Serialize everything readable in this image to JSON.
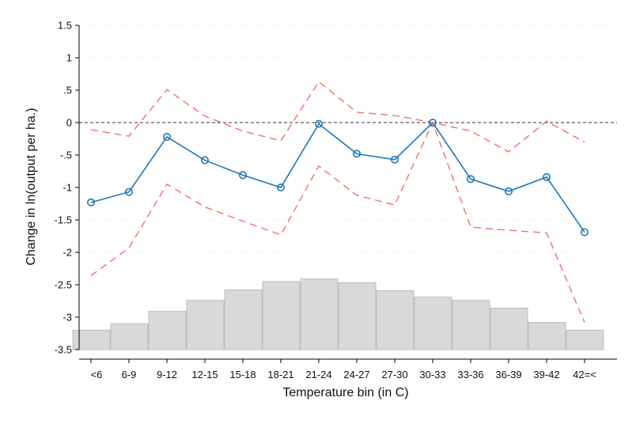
{
  "chart_data": {
    "type": "line",
    "xlabel": "Temperature bin (in C)",
    "ylabel": "Change in ln(output per ha.)",
    "ylim": [
      -3.5,
      1.5
    ],
    "yticks": [
      "1.5",
      "1",
      ".5",
      "0",
      "-.5",
      "-1",
      "-1.5",
      "-2",
      "-2.5",
      "-3",
      "-3.5"
    ],
    "ytick_values": [
      1.5,
      1,
      0.5,
      0,
      -0.5,
      -1,
      -1.5,
      -2,
      -2.5,
      -3,
      -3.5
    ],
    "categories": [
      "<6",
      "6-9",
      "9-12",
      "12-15",
      "15-18",
      "18-21",
      "21-24",
      "24-27",
      "27-30",
      "30-33",
      "33-36",
      "36-39",
      "39-42",
      "42=<"
    ],
    "grid": true,
    "reference_line": 0,
    "series": [
      {
        "role": "estimate",
        "style": "solid-with-circles",
        "color": "#1f77b4",
        "values": [
          -1.23,
          -1.07,
          -0.22,
          -0.58,
          -0.81,
          -1.0,
          -0.02,
          -0.48,
          -0.57,
          0.0,
          -0.87,
          -1.06,
          -0.84,
          -1.69
        ]
      },
      {
        "role": "upper-ci",
        "style": "dashed",
        "color": "#f07167",
        "values": [
          -0.11,
          -0.21,
          0.51,
          0.1,
          -0.13,
          -0.28,
          0.63,
          0.16,
          0.11,
          0.0,
          -0.13,
          -0.45,
          0.02,
          -0.3
        ]
      },
      {
        "role": "lower-ci",
        "style": "dashed",
        "color": "#f07167",
        "values": [
          -2.36,
          -1.93,
          -0.95,
          -1.3,
          -1.52,
          -1.73,
          -0.67,
          -1.12,
          -1.27,
          0.0,
          -1.61,
          -1.66,
          -1.7,
          -3.08
        ]
      }
    ],
    "histogram": {
      "color": "#d9d9d9",
      "values": [
        -3.2,
        -3.1,
        -2.91,
        -2.74,
        -2.58,
        -2.45,
        -2.41,
        -2.47,
        -2.59,
        -2.69,
        -2.74,
        -2.86,
        -3.08,
        -3.2
      ]
    }
  }
}
